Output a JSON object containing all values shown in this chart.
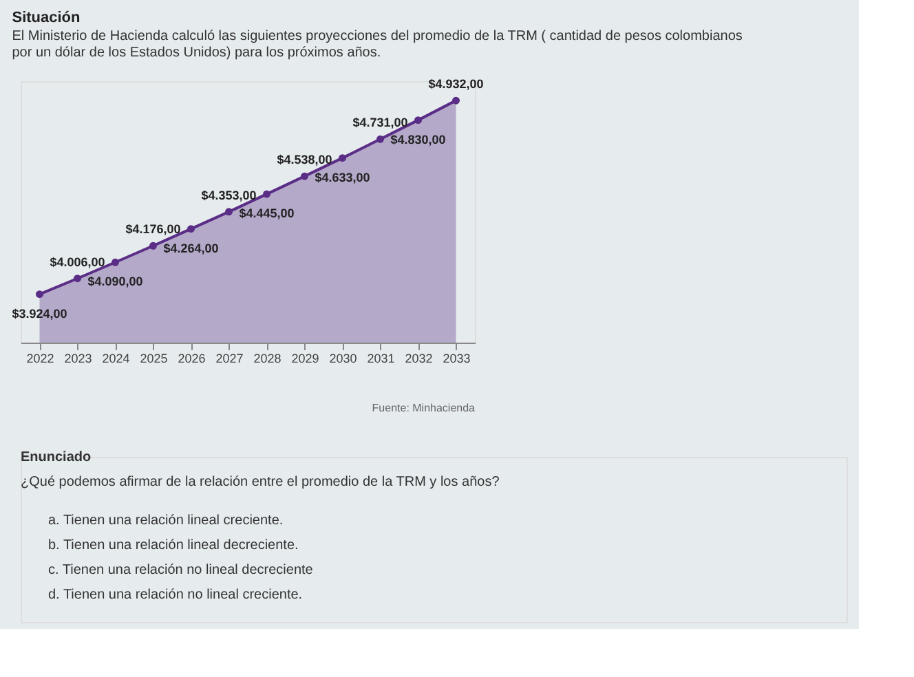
{
  "chart_data": {
    "type": "area",
    "title": "Situación",
    "subtitle": "El Ministerio de Hacienda calculó las siguientes proyecciones del promedio de la TRM ( cantidad de pesos colombianos por un dólar de los Estados Unidos) para los próximos años.",
    "categories": [
      "2022",
      "2023",
      "2024",
      "2025",
      "2026",
      "2027",
      "2028",
      "2029",
      "2030",
      "2031",
      "2032",
      "2033"
    ],
    "series": [
      {
        "color": "#5a2d86",
        "values": [
          3924,
          4006,
          4090,
          4176,
          4264,
          4353,
          4445,
          4538,
          4633,
          4731,
          4830,
          4932
        ],
        "value_labels": [
          "$3.924,00",
          "$4.006,00",
          "$4.090,00",
          "$4.176,00",
          "$4.264,00",
          "$4.353,00",
          "$4.445,00",
          "$4.538,00",
          "$4.633,00",
          "$4.731,00",
          "$4.830,00",
          "$4.932,00"
        ]
      }
    ],
    "marker": "circle",
    "grid": false,
    "tick_labels": "x",
    "annotations": [
      "Fuente: Minhacienda",
      "Enunciado",
      "¿Qué podemos afirmar de la relación entre el promedio de la TRM y los años?",
      "a.  Tienen una relación lineal creciente.",
      "b.  Tienen una relación lineal decreciente.",
      "c.  Tienen una relación no lineal decreciente",
      "d.  Tienen una relación no lineal creciente."
    ]
  }
}
